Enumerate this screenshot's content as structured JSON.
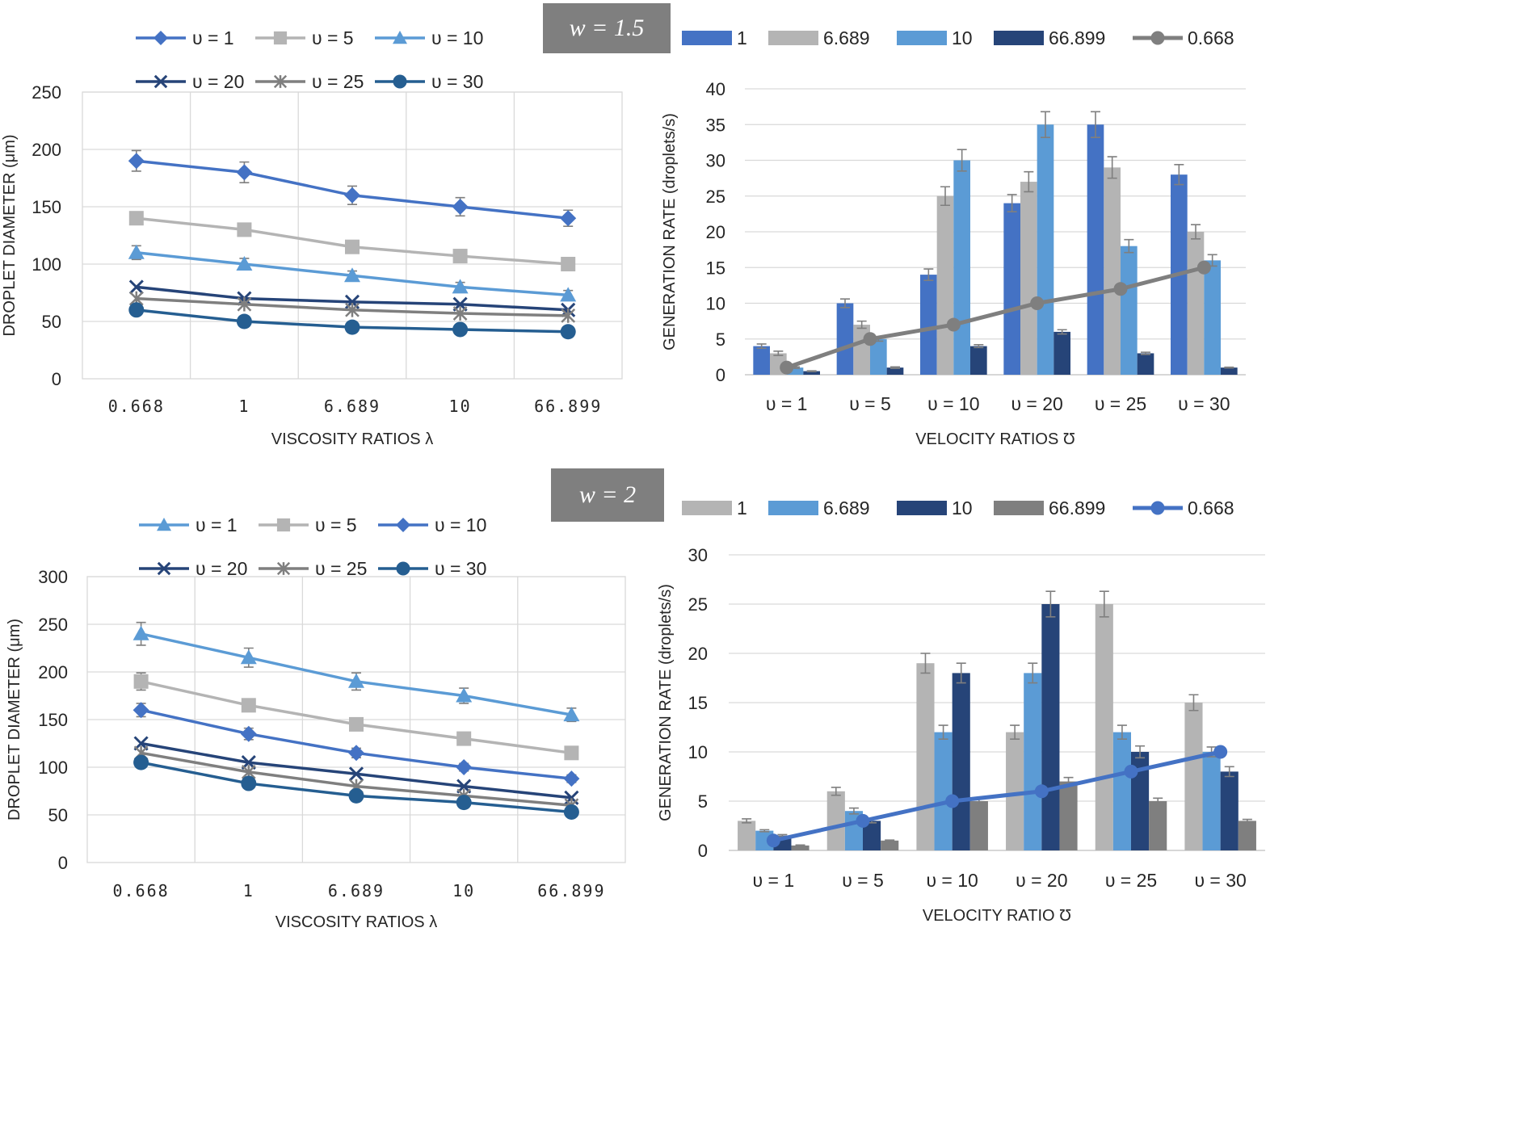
{
  "colors": {
    "blue_mid": "#4472c4",
    "gray_light": "#b4b4b4",
    "blue_light": "#5b9bd5",
    "navy": "#264478",
    "gray_dark": "#7f7f7f",
    "steel": "#255e91",
    "grid": "#d9d9d9",
    "axis": "#bfbfbf",
    "text": "#262626",
    "errbar": "#7f7f7f"
  },
  "chart_data": [
    {
      "id": "top-left",
      "type": "line",
      "title": "",
      "xlabel": "VISCOSITY RATIOS λ",
      "ylabel": "DROPLET DIAMETER (μm)",
      "ylim": [
        0,
        250
      ],
      "ytick_step": 50,
      "categories": [
        "0.668",
        "1",
        "6.689",
        "10",
        "66.899"
      ],
      "series": [
        {
          "name": "υ = 1",
          "color": "#4472c4",
          "marker": "diamond",
          "values": [
            190,
            180,
            160,
            150,
            140
          ],
          "errors": [
            9,
            9,
            8,
            8,
            7
          ]
        },
        {
          "name": "υ = 5",
          "color": "#b4b4b4",
          "marker": "square",
          "values": [
            140,
            130,
            115,
            107,
            100
          ],
          "errors": [
            0,
            0,
            0,
            0,
            0
          ]
        },
        {
          "name": "υ = 10",
          "color": "#5b9bd5",
          "marker": "triangle",
          "values": [
            110,
            100,
            90,
            80,
            73
          ],
          "errors": [
            6,
            5,
            4,
            4,
            4
          ]
        },
        {
          "name": "υ = 20",
          "color": "#264478",
          "marker": "x",
          "values": [
            80,
            70,
            67,
            65,
            60
          ],
          "errors": [
            0,
            0,
            0,
            0,
            0
          ]
        },
        {
          "name": "υ = 25",
          "color": "#7f7f7f",
          "marker": "star",
          "values": [
            70,
            65,
            60,
            57,
            55
          ],
          "errors": [
            0,
            0,
            0,
            0,
            0
          ]
        },
        {
          "name": "υ = 30",
          "color": "#255e91",
          "marker": "circle",
          "values": [
            60,
            50,
            45,
            43,
            41
          ],
          "errors": [
            0,
            0,
            0,
            0,
            0
          ]
        }
      ]
    },
    {
      "id": "top-right",
      "type": "bar",
      "title": "",
      "xlabel": "VELOCITY RATIOS Ʊ",
      "ylabel": "GENERATION RATE (droplets/s)",
      "ylim": [
        0,
        40
      ],
      "ytick_step": 5,
      "categories": [
        "υ = 1",
        "υ = 5",
        "υ = 10",
        "υ = 20",
        "υ = 25",
        "υ = 30"
      ],
      "bar_series": [
        {
          "name": "1",
          "color": "#4472c4",
          "values": [
            4,
            10,
            14,
            24,
            35,
            28
          ],
          "errors": [
            0.3,
            0.6,
            0.8,
            1.2,
            1.8,
            1.4
          ]
        },
        {
          "name": "6.689",
          "color": "#b4b4b4",
          "values": [
            3,
            7,
            25,
            27,
            29,
            20
          ],
          "errors": [
            0.3,
            0.5,
            1.3,
            1.4,
            1.5,
            1.0
          ]
        },
        {
          "name": "10",
          "color": "#5b9bd5",
          "values": [
            1,
            5,
            30,
            35,
            18,
            16
          ],
          "errors": [
            0.1,
            0.3,
            1.5,
            1.8,
            0.9,
            0.8
          ]
        },
        {
          "name": "66.899",
          "color": "#264478",
          "values": [
            0.5,
            1,
            4,
            6,
            3,
            1
          ],
          "errors": [
            0.05,
            0.1,
            0.2,
            0.3,
            0.15,
            0.05
          ]
        }
      ],
      "line_series": {
        "name": "0.668",
        "color": "#7f7f7f",
        "values": [
          1,
          5,
          7,
          10,
          12,
          15
        ]
      }
    },
    {
      "id": "bottom-left",
      "type": "line",
      "title": "",
      "xlabel": "VISCOSITY RATIOS λ",
      "ylabel": "DROPLET DIAMETER (μm)",
      "ylim": [
        0,
        300
      ],
      "ytick_step": 50,
      "categories": [
        "0.668",
        "1",
        "6.689",
        "10",
        "66.899"
      ],
      "series": [
        {
          "name": "υ = 1",
          "color": "#5b9bd5",
          "marker": "triangle",
          "values": [
            240,
            215,
            190,
            175,
            155
          ],
          "errors": [
            12,
            10,
            9,
            8,
            7
          ]
        },
        {
          "name": "υ = 5",
          "color": "#b4b4b4",
          "marker": "square",
          "values": [
            190,
            165,
            145,
            130,
            115
          ],
          "errors": [
            9,
            0,
            0,
            0,
            0
          ]
        },
        {
          "name": "υ = 10",
          "color": "#4472c4",
          "marker": "diamond",
          "values": [
            160,
            135,
            115,
            100,
            88
          ],
          "errors": [
            7,
            6,
            5,
            4,
            4
          ]
        },
        {
          "name": "υ = 20",
          "color": "#264478",
          "marker": "x",
          "values": [
            125,
            105,
            93,
            80,
            68
          ],
          "errors": [
            0,
            0,
            0,
            0,
            0
          ]
        },
        {
          "name": "υ = 25",
          "color": "#7f7f7f",
          "marker": "star",
          "values": [
            115,
            95,
            80,
            70,
            60
          ],
          "errors": [
            0,
            0,
            0,
            0,
            0
          ]
        },
        {
          "name": "υ = 30",
          "color": "#255e91",
          "marker": "circle",
          "values": [
            105,
            83,
            70,
            63,
            53
          ],
          "errors": [
            0,
            0,
            0,
            0,
            0
          ]
        }
      ]
    },
    {
      "id": "bottom-right",
      "type": "bar",
      "title": "",
      "xlabel": "VELOCITY RATIO Ʊ",
      "ylabel": "GENERATION RATE (droplets/s)",
      "ylim": [
        0,
        30
      ],
      "ytick_step": 5,
      "categories": [
        "υ = 1",
        "υ = 5",
        "υ = 10",
        "υ = 20",
        "υ = 25",
        "υ = 30"
      ],
      "bar_series": [
        {
          "name": "1",
          "color": "#b4b4b4",
          "values": [
            3,
            6,
            19,
            12,
            25,
            15
          ],
          "errors": [
            0.2,
            0.4,
            1.0,
            0.7,
            1.3,
            0.8
          ]
        },
        {
          "name": "6.689",
          "color": "#5b9bd5",
          "values": [
            2,
            4,
            12,
            18,
            12,
            10
          ],
          "errors": [
            0.1,
            0.3,
            0.7,
            1.0,
            0.7,
            0.5
          ]
        },
        {
          "name": "10",
          "color": "#264478",
          "values": [
            1.5,
            3,
            18,
            25,
            10,
            8
          ],
          "errors": [
            0.1,
            0.2,
            1.0,
            1.3,
            0.6,
            0.5
          ]
        },
        {
          "name": "66.899",
          "color": "#7f7f7f",
          "values": [
            0.5,
            1,
            5,
            7,
            5,
            3
          ],
          "errors": [
            0.05,
            0.05,
            0.3,
            0.4,
            0.3,
            0.15
          ]
        }
      ],
      "line_series": {
        "name": "0.668",
        "color": "#4472c4",
        "values": [
          1,
          3,
          5,
          6,
          8,
          10
        ]
      }
    }
  ],
  "panel_labels": {
    "top": "w = 1.5",
    "bottom": "w = 2"
  }
}
